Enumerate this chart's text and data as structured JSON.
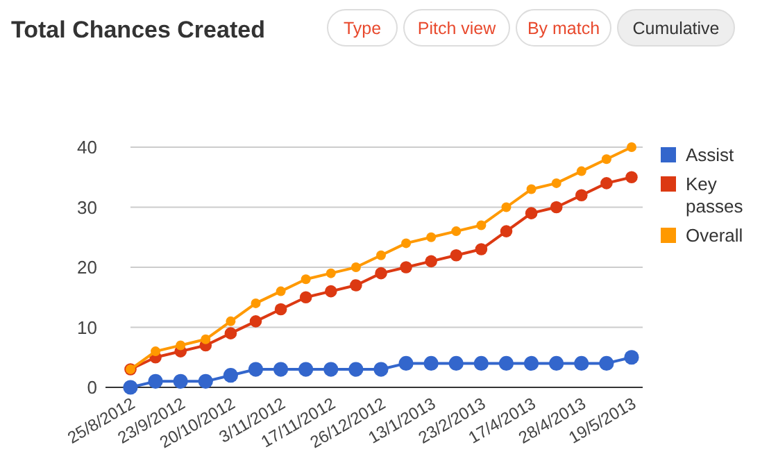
{
  "chart_data": {
    "type": "line",
    "title": "Total Chances Created",
    "annotations": [
      "Type",
      "Pitch view",
      "By match",
      "Cumulative"
    ],
    "categories": [
      "25/8/2012",
      null,
      "23/9/2012",
      null,
      "20/10/2012",
      null,
      "3/11/2012",
      null,
      "17/11/2012",
      null,
      "26/12/2012",
      null,
      "13/1/2013",
      null,
      "23/2/2013",
      null,
      "17/4/2013",
      null,
      "28/4/2013",
      null,
      "19/5/2013"
    ],
    "series": [
      {
        "name": "Assist",
        "color": "#3366cc",
        "values": [
          0,
          1,
          1,
          1,
          2,
          3,
          3,
          3,
          3,
          3,
          3,
          4,
          4,
          4,
          4,
          4,
          4,
          4,
          4,
          4,
          5
        ]
      },
      {
        "name": "Key passes",
        "color": "#dc3912",
        "values": [
          3,
          5,
          6,
          7,
          9,
          11,
          13,
          15,
          16,
          17,
          19,
          20,
          21,
          22,
          23,
          26,
          29,
          30,
          32,
          34,
          35
        ]
      },
      {
        "name": "Overall",
        "color": "#ff9900",
        "values": [
          3,
          6,
          7,
          8,
          11,
          14,
          16,
          18,
          19,
          20,
          22,
          24,
          25,
          26,
          27,
          30,
          33,
          34,
          36,
          38,
          40
        ]
      }
    ],
    "ylim": [
      0,
      40
    ],
    "yticks": [
      0,
      10,
      20,
      30,
      40
    ],
    "grid": "y",
    "legend": "right",
    "marker": "circle",
    "line_style": "solid"
  }
}
